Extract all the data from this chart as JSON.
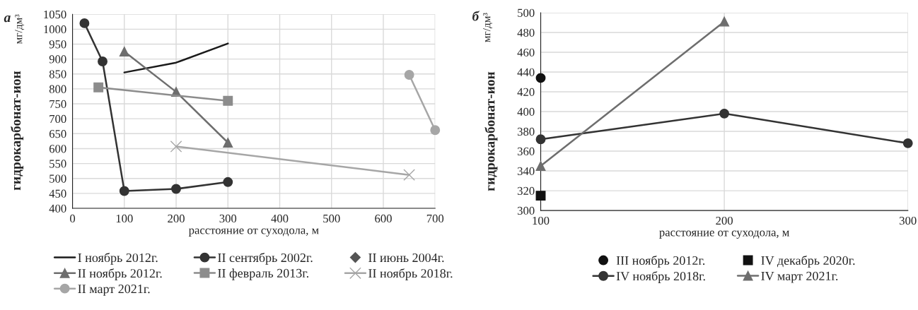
{
  "chart_data": [
    {
      "type": "line",
      "title": "а",
      "xlabel": "расстояние от суходола, м",
      "ylabel": "гидрокарбонат-ион",
      "annotations": [
        "мг/дм³"
      ],
      "xlim": [
        0,
        700
      ],
      "xticks": [
        0,
        100,
        200,
        300,
        400,
        500,
        600,
        700
      ],
      "ylim": [
        400,
        1050
      ],
      "yticks": [
        400,
        450,
        500,
        550,
        600,
        650,
        700,
        750,
        800,
        850,
        900,
        950,
        1000,
        1050
      ],
      "grid": true,
      "legend": "bottom",
      "series": [
        {
          "name": "I ноябрь 2012г.",
          "color": "#1a1a1a",
          "marker": "none",
          "x": [
            100,
            200,
            300
          ],
          "values": [
            855,
            888,
            952
          ]
        },
        {
          "name": "II сентябрь 2002г.",
          "color": "#333333",
          "marker": "circle",
          "x": [
            23,
            58,
            100,
            200,
            300
          ],
          "values": [
            1020,
            892,
            458,
            465,
            488
          ]
        },
        {
          "name": "II июнь 2004г.",
          "type": "scatter",
          "color": "#555555",
          "marker": "diamond"
        },
        {
          "name": "II ноябрь 2012г.",
          "color": "#6e6e6e",
          "marker": "triangle",
          "x": [
            100,
            200,
            300
          ],
          "values": [
            925,
            790,
            620
          ]
        },
        {
          "name": "II февраль 2013г.",
          "color": "#8c8c8c",
          "marker": "square",
          "x": [
            50,
            300
          ],
          "values": [
            805,
            760
          ]
        },
        {
          "name": "II ноябрь 2018г.",
          "color": "#a6a6a6",
          "marker": "cross",
          "x": [
            200,
            650
          ],
          "values": [
            607,
            512
          ]
        },
        {
          "name": "II март 2021г.",
          "color": "#a6a6a6",
          "marker": "circle",
          "x": [
            650,
            700
          ],
          "values": [
            847,
            662
          ]
        }
      ]
    },
    {
      "type": "line",
      "title": "б",
      "xlabel": "расстояние от суходола, м",
      "ylabel": "гидрокарбонат-ион",
      "annotations": [
        "мг/дм³"
      ],
      "xlim": [
        100,
        300
      ],
      "xticks": [
        100,
        200,
        300
      ],
      "ylim": [
        300,
        500
      ],
      "yticks": [
        300,
        320,
        340,
        360,
        380,
        400,
        420,
        440,
        460,
        480,
        500
      ],
      "grid": true,
      "legend": "bottom",
      "series": [
        {
          "name": "III ноябрь 2012г.",
          "type": "scatter",
          "color": "#111111",
          "marker": "circle",
          "x": [
            100
          ],
          "values": [
            434
          ]
        },
        {
          "name": "IV декабрь 2020г.",
          "type": "scatter",
          "color": "#111111",
          "marker": "square",
          "x": [
            100
          ],
          "values": [
            315
          ]
        },
        {
          "name": "IV ноябрь 2018г.",
          "color": "#333333",
          "marker": "circle",
          "x": [
            100,
            200,
            300
          ],
          "values": [
            372,
            398,
            368
          ]
        },
        {
          "name": "IV март 2021г.",
          "color": "#6e6e6e",
          "marker": "triangle",
          "x": [
            100,
            200
          ],
          "values": [
            345,
            491
          ]
        }
      ]
    }
  ]
}
